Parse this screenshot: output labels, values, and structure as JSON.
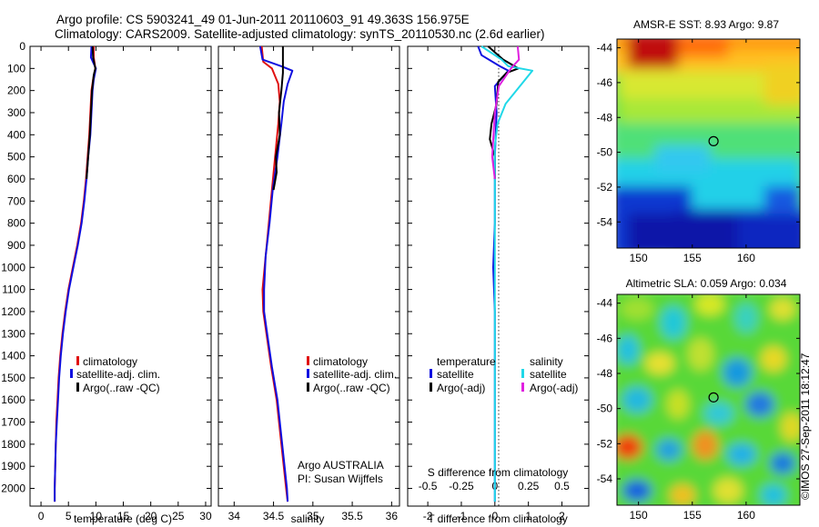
{
  "header": {
    "title_line1": "Argo profile: CS 5903241_49 01-Jun-2011 20110603_91 49.363S 156.975E",
    "title_line2": "Climatology: CARS2009. Satellite-adjusted climatology: synTS_20110530.nc (2.6d earlier)"
  },
  "timestamp": "©IMOS 27-Sep-2011 18:12:47",
  "colors": {
    "climatology": "#e01010",
    "satellite": "#1010e0",
    "argo": "#000000",
    "sal_satellite": "#20d8e8",
    "sal_argo": "#e020e0"
  },
  "chart_data": [
    {
      "id": "temp",
      "type": "line",
      "xlabel": "temperature (deg C)",
      "ylabel": "",
      "xlim": [
        -2,
        31
      ],
      "xticks": [
        0,
        5,
        10,
        15,
        20,
        25,
        30
      ],
      "ylim": [
        0,
        2080
      ],
      "yticks": [
        0,
        100,
        200,
        300,
        400,
        500,
        600,
        700,
        800,
        900,
        1000,
        1100,
        1200,
        1300,
        1400,
        1500,
        1600,
        1700,
        1800,
        1900,
        2000
      ],
      "legend": [
        "climatology",
        "satellite-adj. clim.",
        "Argo(..raw -QC)"
      ],
      "legend_position": "lower-center",
      "series": [
        {
          "name": "climatology",
          "color": "#e01010",
          "points": [
            [
              9.6,
              0
            ],
            [
              9.6,
              50
            ],
            [
              9.9,
              100
            ],
            [
              9.5,
              150
            ],
            [
              9.2,
              200
            ],
            [
              9.0,
              300
            ],
            [
              8.8,
              400
            ],
            [
              8.5,
              500
            ],
            [
              8.2,
              600
            ],
            [
              7.8,
              700
            ],
            [
              7.3,
              800
            ],
            [
              6.6,
              900
            ],
            [
              5.8,
              1000
            ],
            [
              5.0,
              1100
            ],
            [
              4.4,
              1200
            ],
            [
              3.9,
              1300
            ],
            [
              3.5,
              1400
            ],
            [
              3.2,
              1500
            ],
            [
              3.0,
              1600
            ],
            [
              2.8,
              1700
            ],
            [
              2.7,
              1800
            ],
            [
              2.6,
              1900
            ],
            [
              2.5,
              2000
            ],
            [
              2.5,
              2060
            ]
          ]
        },
        {
          "name": "satellite-adj. clim.",
          "color": "#1010e0",
          "points": [
            [
              9.2,
              0
            ],
            [
              9.1,
              50
            ],
            [
              10.0,
              100
            ],
            [
              9.6,
              150
            ],
            [
              9.4,
              200
            ],
            [
              9.2,
              300
            ],
            [
              9.0,
              400
            ],
            [
              8.6,
              500
            ],
            [
              8.3,
              600
            ],
            [
              7.9,
              700
            ],
            [
              7.4,
              800
            ],
            [
              6.7,
              900
            ],
            [
              5.9,
              1000
            ],
            [
              5.1,
              1100
            ],
            [
              4.5,
              1200
            ],
            [
              4.0,
              1300
            ],
            [
              3.6,
              1400
            ],
            [
              3.3,
              1500
            ],
            [
              3.1,
              1600
            ],
            [
              2.9,
              1700
            ],
            [
              2.7,
              1800
            ],
            [
              2.6,
              1900
            ],
            [
              2.5,
              2000
            ],
            [
              2.5,
              2060
            ]
          ]
        },
        {
          "name": "Argo(..raw -QC)",
          "color": "#000000",
          "points": [
            [
              9.4,
              0
            ],
            [
              9.5,
              50
            ],
            [
              9.9,
              100
            ],
            [
              9.6,
              130
            ],
            [
              9.3,
              200
            ],
            [
              9.1,
              300
            ],
            [
              8.9,
              400
            ],
            [
              8.6,
              500
            ],
            [
              8.3,
              600
            ]
          ]
        }
      ]
    },
    {
      "id": "sal",
      "type": "line",
      "xlabel": "salinity",
      "ylabel": "",
      "xlim": [
        33.8,
        36.1
      ],
      "xticks": [
        34,
        34.5,
        35,
        35.5,
        36
      ],
      "ylim": [
        0,
        2080
      ],
      "legend": [
        "climatology",
        "satellite-adj. clim.",
        "Argo(..raw -QC)"
      ],
      "legend_position": "lower-center",
      "annotation": [
        "Argo AUSTRALIA",
        "PI: Susan Wijffels"
      ],
      "series": [
        {
          "name": "climatology",
          "color": "#e01010",
          "points": [
            [
              34.35,
              0
            ],
            [
              34.37,
              70
            ],
            [
              34.48,
              100
            ],
            [
              34.56,
              170
            ],
            [
              34.58,
              250
            ],
            [
              34.56,
              350
            ],
            [
              34.52,
              500
            ],
            [
              34.48,
              650
            ],
            [
              34.44,
              800
            ],
            [
              34.4,
              950
            ],
            [
              34.36,
              1100
            ],
            [
              34.37,
              1200
            ],
            [
              34.41,
              1300
            ],
            [
              34.47,
              1450
            ],
            [
              34.54,
              1600
            ],
            [
              34.6,
              1800
            ],
            [
              34.66,
              2000
            ],
            [
              34.68,
              2060
            ]
          ]
        },
        {
          "name": "satellite-adj. clim.",
          "color": "#1010e0",
          "points": [
            [
              34.33,
              0
            ],
            [
              34.36,
              60
            ],
            [
              34.6,
              90
            ],
            [
              34.74,
              110
            ],
            [
              34.68,
              170
            ],
            [
              34.63,
              250
            ],
            [
              34.6,
              350
            ],
            [
              34.55,
              500
            ],
            [
              34.49,
              650
            ],
            [
              34.45,
              800
            ],
            [
              34.4,
              950
            ],
            [
              34.38,
              1100
            ],
            [
              34.38,
              1200
            ],
            [
              34.42,
              1300
            ],
            [
              34.48,
              1450
            ],
            [
              34.55,
              1600
            ],
            [
              34.61,
              1800
            ],
            [
              34.67,
              2000
            ],
            [
              34.68,
              2060
            ]
          ]
        },
        {
          "name": "Argo(..raw -QC)",
          "color": "#000000",
          "points": [
            [
              34.62,
              0
            ],
            [
              34.62,
              60
            ],
            [
              34.62,
              120
            ],
            [
              34.6,
              200
            ],
            [
              34.57,
              300
            ],
            [
              34.58,
              400
            ],
            [
              34.53,
              500
            ],
            [
              34.54,
              570
            ],
            [
              34.5,
              650
            ]
          ]
        }
      ]
    },
    {
      "id": "diff",
      "type": "line",
      "xlabel": "T difference from climatology",
      "x2label": "S difference from climatology",
      "xlim": [
        -2.6,
        2.8
      ],
      "xticks": [
        -2,
        -1,
        0,
        1,
        2
      ],
      "x2lim": [
        -0.65,
        0.7
      ],
      "x2ticks": [
        -0.5,
        -0.25,
        0,
        0.25,
        0.5
      ],
      "x2ticklabels": [
        "-0.5",
        "-0.25",
        "0",
        "0.25",
        "0.5"
      ],
      "ylim": [
        0,
        2080
      ],
      "legend_left_title": "temperature",
      "legend_right_title": "salinity",
      "legend_left": [
        "satellite",
        "Argo(-adj)"
      ],
      "legend_right": [
        "satellite",
        "Argo(-adj)"
      ],
      "legend_position": "lower-center",
      "series": [
        {
          "name": "T satellite",
          "color": "#1010e0",
          "points": [
            [
              -0.5,
              0
            ],
            [
              -0.4,
              40
            ],
            [
              0.15,
              90
            ],
            [
              0.4,
              110
            ],
            [
              0.0,
              180
            ],
            [
              0.05,
              300
            ],
            [
              0.0,
              500
            ],
            [
              0.0,
              800
            ],
            [
              -0.05,
              1000
            ],
            [
              0.0,
              1200
            ],
            [
              0.0,
              1500
            ],
            [
              0.0,
              1800
            ],
            [
              0.0,
              2060
            ]
          ]
        },
        {
          "name": "T Argo(-adj)",
          "color": "#000000",
          "points": [
            [
              -0.2,
              0
            ],
            [
              0.25,
              60
            ],
            [
              0.7,
              100
            ],
            [
              0.35,
              120
            ],
            [
              0.1,
              160
            ],
            [
              0.05,
              260
            ],
            [
              -0.1,
              350
            ],
            [
              -0.15,
              420
            ],
            [
              0.0,
              500
            ],
            [
              0.0,
              600
            ]
          ]
        },
        {
          "name": "S satellite",
          "color": "#20d8e8",
          "points": [
            [
              -0.1,
              0
            ],
            [
              0.05,
              60
            ],
            [
              0.1,
              90
            ],
            [
              0.28,
              110
            ],
            [
              0.2,
              170
            ],
            [
              0.08,
              260
            ],
            [
              0.02,
              350
            ],
            [
              0.0,
              450
            ],
            [
              0.0,
              700
            ],
            [
              0.0,
              1000
            ],
            [
              0.0,
              1500
            ],
            [
              0.0,
              2060
            ]
          ]
        },
        {
          "name": "S Argo(-adj)",
          "color": "#e020e0",
          "points": [
            [
              0.17,
              0
            ],
            [
              0.18,
              60
            ],
            [
              0.12,
              100
            ],
            [
              0.03,
              180
            ],
            [
              0.0,
              300
            ],
            [
              -0.01,
              400
            ],
            [
              -0.02,
              500
            ],
            [
              0.0,
              600
            ]
          ]
        }
      ]
    },
    {
      "id": "sst",
      "type": "heatmap",
      "title": "AMSR-E SST: 8.93 Argo: 9.87",
      "xlim": [
        148,
        165
      ],
      "xticks": [
        150,
        155,
        160
      ],
      "ylim": [
        -55.5,
        -43.5
      ],
      "yticks": [
        -44,
        -46,
        -48,
        -50,
        -52,
        -54
      ],
      "marker": [
        156.975,
        -49.363
      ]
    },
    {
      "id": "sla",
      "type": "heatmap",
      "title": "Altimetric SLA: 0.059 Argo: 0.034",
      "xlim": [
        148,
        165
      ],
      "xticks": [
        150,
        155,
        160
      ],
      "ylim": [
        -55.5,
        -43.5
      ],
      "yticks": [
        -44,
        -46,
        -48,
        -50,
        -52,
        -54
      ],
      "marker": [
        156.975,
        -49.363
      ]
    }
  ]
}
